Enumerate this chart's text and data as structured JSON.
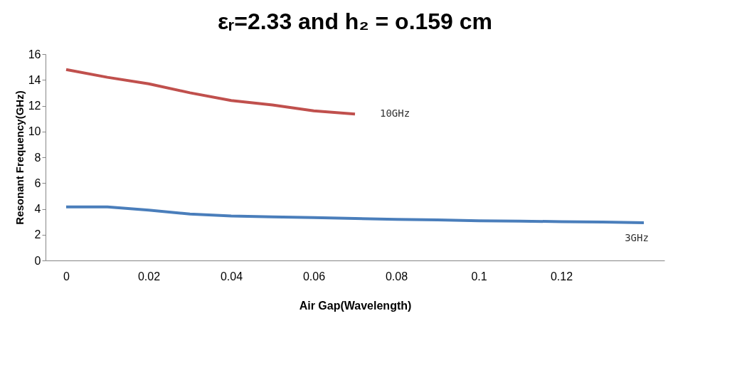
{
  "chart_data": {
    "type": "line",
    "title": "εᵣ=2.33 and h₂ = o.159 cm",
    "xlabel": "Air Gap(Wavelength)",
    "ylabel": "Resonant Frequency(GHz)",
    "categories": [
      "0",
      null,
      "0.02",
      null,
      "0.04",
      null,
      "0.06",
      null,
      "0.08",
      null,
      "0.1",
      null,
      "0.12",
      null,
      null
    ],
    "series": [
      {
        "name": "10GHz",
        "color": "#c0504d",
        "values": [
          14.8,
          14.2,
          13.7,
          13.0,
          12.4,
          12.05,
          11.6,
          11.35,
          null,
          null,
          null,
          null,
          null,
          null,
          null
        ]
      },
      {
        "name": "3GHz",
        "color": "#4a7ebb",
        "values": [
          4.15,
          4.15,
          3.9,
          3.6,
          3.45,
          3.38,
          3.33,
          3.25,
          3.18,
          3.14,
          3.08,
          3.05,
          3.01,
          2.98,
          2.93
        ]
      }
    ],
    "ylim": [
      0,
      16
    ],
    "yticks": [
      0,
      2,
      4,
      6,
      8,
      10,
      12,
      14,
      16
    ],
    "grid": false,
    "legend": false,
    "marker": "none",
    "line_style": "solid"
  }
}
